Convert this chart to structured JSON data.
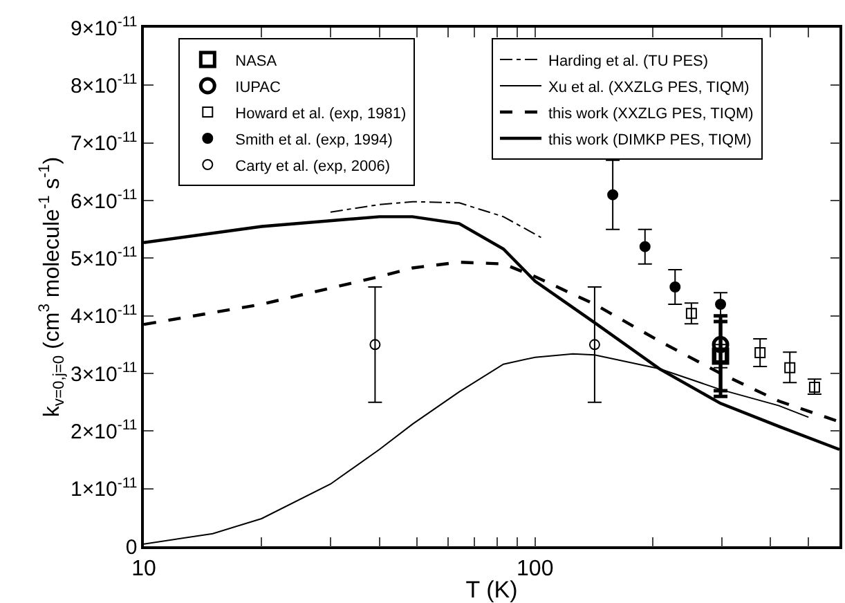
{
  "chart_data": {
    "type": "line",
    "xlabel": "T (K)",
    "ylabel": "k$_{v=0,j=0}$ (cm$^{3}$ molecule$^{-1}$ s$^{-1}$)",
    "log": "x",
    "xlim": [
      10,
      600
    ],
    "xticks": [
      10,
      {
        "value": 20,
        "label": null
      },
      {
        "value": 30,
        "label": null
      },
      {
        "value": 40,
        "label": null
      },
      {
        "value": 50,
        "label": null
      },
      {
        "value": 60,
        "label": null
      },
      {
        "value": 70,
        "label": null
      },
      {
        "value": 80,
        "label": null
      },
      {
        "value": 90,
        "label": null
      },
      100,
      {
        "value": 200,
        "label": null
      },
      {
        "value": 300,
        "label": null
      },
      {
        "value": 400,
        "label": null
      },
      {
        "value": 500,
        "label": null
      }
    ],
    "ylim": [
      0,
      9e-11
    ],
    "yticks": [
      0,
      {
        "value": 1e-11,
        "label": "1×10$^{-11}$"
      },
      {
        "value": 2e-11,
        "label": "2×10$^{-11}$"
      },
      {
        "value": 3e-11,
        "label": "3×10$^{-11}$"
      },
      {
        "value": 4e-11,
        "label": "4×10$^{-11}$"
      },
      {
        "value": 5e-11,
        "label": "5×10$^{-11}$"
      },
      {
        "value": 6e-11,
        "label": "6×10$^{-11}$"
      },
      {
        "value": 7e-11,
        "label": "7×10$^{-11}$"
      },
      {
        "value": 8e-11,
        "label": "8×10$^{-11}$"
      },
      {
        "value": 9e-11,
        "label": "9×10$^{-11}$"
      }
    ],
    "legend": "top",
    "series": [
      {
        "name": "NASA",
        "type": "scatter",
        "marker": "square",
        "color": "#000000",
        "x": [
          298
        ],
        "values": [
          3.3e-11
        ],
        "errors": [
          [
            2.6e-11,
            4e-11
          ]
        ]
      },
      {
        "name": "IUPAC",
        "type": "scatter",
        "marker": "circle",
        "color": "#000000",
        "x": [
          298
        ],
        "values": [
          3.5e-11
        ],
        "errors": [
          [
            2.7e-11,
            3.9e-11
          ]
        ]
      },
      {
        "name": "Howard et al. (exp, 1981)",
        "type": "scatter",
        "marker": "square",
        "color": "#000000",
        "x": [
          251,
          298,
          376,
          448,
          518
        ],
        "values": [
          4.04e-11,
          3.3e-11,
          3.36e-11,
          3.1e-11,
          2.76e-11
        ],
        "errors": [
          [
            3.86e-11,
            4.22e-11
          ],
          [
            3.1e-11,
            3.5e-11
          ],
          [
            3.12e-11,
            3.6e-11
          ],
          [
            2.84e-11,
            3.37e-11
          ],
          [
            2.64e-11,
            2.9e-11
          ]
        ]
      },
      {
        "name": "Smith et al. (exp, 1994)",
        "type": "scatter",
        "marker": "circle",
        "color": "#000000",
        "x": [
          158,
          191,
          228,
          298
        ],
        "values": [
          6.1e-11,
          5.2e-11,
          4.5e-11,
          4.2e-11
        ],
        "errors": [
          [
            5.5e-11,
            6.7e-11
          ],
          [
            4.9e-11,
            5.5e-11
          ],
          [
            4.2e-11,
            4.8e-11
          ],
          [
            4e-11,
            4.4e-11
          ]
        ]
      },
      {
        "name": "Carty et al. (exp, 2006)",
        "type": "scatter",
        "marker": "circle",
        "color": "#000000",
        "x": [
          39,
          142
        ],
        "values": [
          3.5e-11,
          3.5e-11
        ],
        "errors": [
          [
            2.5e-11,
            4.5e-11
          ],
          [
            2.5e-11,
            4.5e-11
          ]
        ]
      },
      {
        "name": "Harding et al. (TU PES)",
        "line_style": "dashdot",
        "color": "#000000",
        "x": [
          30,
          40,
          48.6,
          64,
          83,
          103.6
        ],
        "values": [
          5.8e-11,
          5.93e-11,
          5.98e-11,
          5.96e-11,
          5.72e-11,
          5.36e-11
        ]
      },
      {
        "name": "Xu et al. (XXZLG PES, TIQM)",
        "line_style": "solid",
        "color": "#000000",
        "x": [
          10,
          15,
          20,
          30,
          40,
          48.6,
          64,
          83,
          100,
          125,
          142,
          208,
          298,
          420,
          500
        ],
        "values": [
          4e-13,
          2.2e-12,
          4.8e-12,
          1.08e-11,
          1.68e-11,
          2.12e-11,
          2.68e-11,
          3.16e-11,
          3.28e-11,
          3.34e-11,
          3.32e-11,
          3.08e-11,
          2.72e-11,
          2.44e-11,
          2.24e-11
        ]
      },
      {
        "name": "this work (XXZLG PES, TIQM)",
        "line_style": "dashed",
        "color": "#000000",
        "x": [
          10,
          20,
          40,
          48.6,
          64,
          83,
          100,
          142,
          208,
          298,
          420,
          600
        ],
        "values": [
          3.85e-11,
          4.2e-11,
          4.68e-11,
          4.83e-11,
          4.93e-11,
          4.9e-11,
          4.68e-11,
          4.2e-11,
          3.56e-11,
          3e-11,
          2.52e-11,
          2.16e-11
        ]
      },
      {
        "name": "this work (DIMKP PES, TIQM)",
        "line_style": "solid",
        "color": "#000000",
        "x": [
          10,
          20,
          40,
          48.6,
          64,
          83,
          100,
          142,
          208,
          298,
          420,
          600
        ],
        "values": [
          5.27e-11,
          5.55e-11,
          5.72e-11,
          5.72e-11,
          5.6e-11,
          5.16e-11,
          4.6e-11,
          3.88e-11,
          3.08e-11,
          2.48e-11,
          2.08e-11,
          1.68e-11
        ]
      }
    ]
  }
}
